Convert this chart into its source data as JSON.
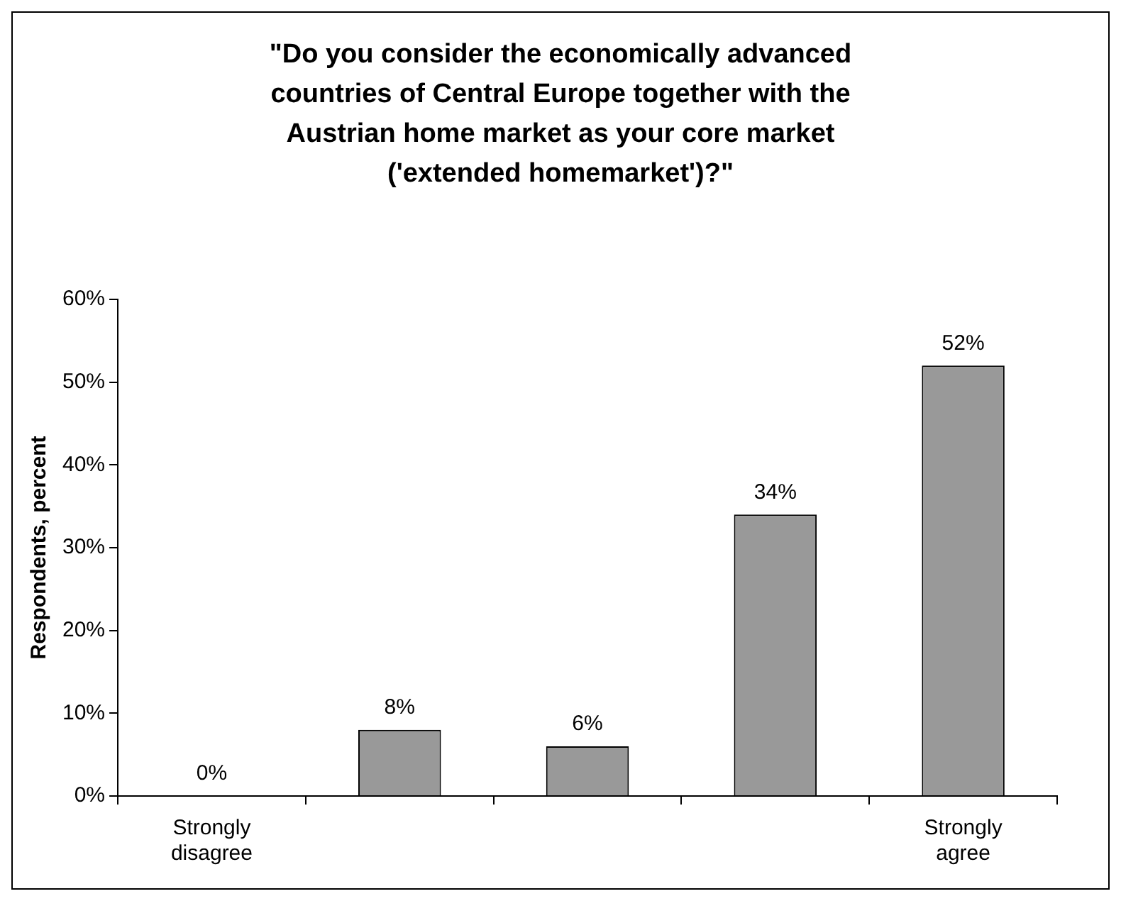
{
  "chart_data": {
    "type": "bar",
    "title": "\"Do you consider the economically advanced countries of Central Europe together with the Austrian home market as your core market ('extended homemarket')?\"",
    "ylabel": "Respondents, percent",
    "categories": [
      "Strongly disagree",
      null,
      null,
      null,
      "Strongly agree"
    ],
    "values": [
      0,
      8,
      6,
      34,
      52
    ],
    "value_labels": [
      "0%",
      "8%",
      "6%",
      "34%",
      "52%"
    ],
    "color": "#999999",
    "ylim": [
      0,
      60
    ],
    "yticks": [
      {
        "value": 0,
        "label": "0%"
      },
      {
        "value": 10,
        "label": "10%"
      },
      {
        "value": 20,
        "label": "20%"
      },
      {
        "value": 30,
        "label": "30%"
      },
      {
        "value": 40,
        "label": "40%"
      },
      {
        "value": 50,
        "label": "50%"
      },
      {
        "value": 60,
        "label": "60%"
      }
    ],
    "grid": false
  }
}
